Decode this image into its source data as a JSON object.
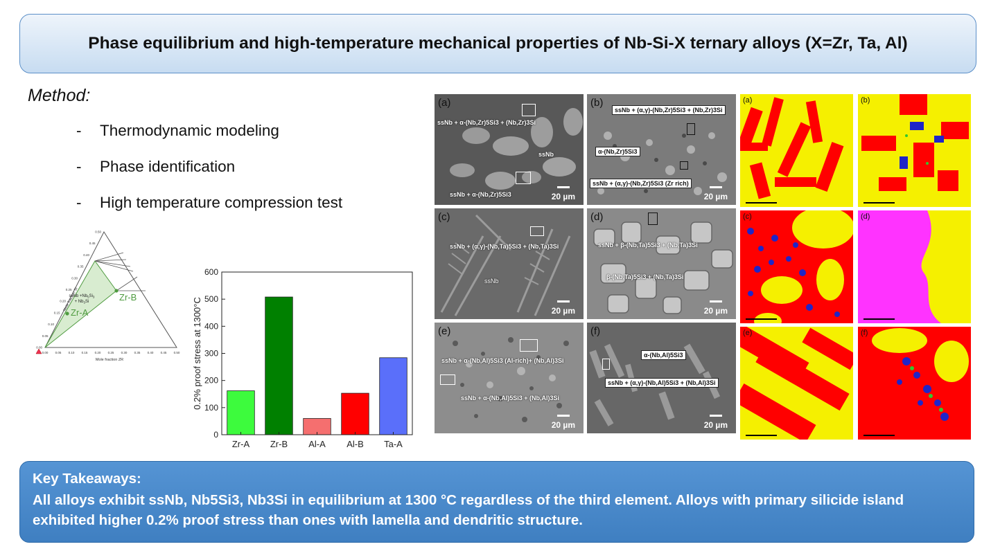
{
  "title": "Phase equilibrium and high-temperature mechanical properties of Nb-Si-X ternary alloys (X=Zr, Ta, Al)",
  "method": {
    "heading": "Method:",
    "items": [
      "Thermodynamic modeling",
      "Phase identification",
      "High temperature compression test"
    ]
  },
  "ternary": {
    "region_label": "ssNb +Nb5Si3 + Nb3Si",
    "point_a": "Zr-A",
    "point_b": "Zr-B",
    "xlabel": "Mole fraction ZR",
    "ylabel": "Mole fraction SI",
    "bottom_ticks": [
      "0.00",
      "0.05",
      "0.10",
      "0.15",
      "0.20",
      "0.25",
      "0.30",
      "0.35",
      "0.40",
      "0.45",
      "0.50"
    ],
    "left_ticks": [
      "0.00",
      "0.05",
      "0.10",
      "0.15",
      "0.20",
      "0.25",
      "0.30",
      "0.35",
      "0.40",
      "0.45",
      "0.50"
    ],
    "colors": {
      "region": "#d8ecd0",
      "point": "#4f9b40"
    }
  },
  "chart_data": {
    "type": "bar",
    "categories": [
      "Zr-A",
      "Zr-B",
      "Al-A",
      "Al-B",
      "Ta-A"
    ],
    "values": [
      162,
      508,
      60,
      153,
      284
    ],
    "colors": [
      "#3dfb3d",
      "#008000",
      "#f56f6f",
      "#ff0000",
      "#5a6ffa"
    ],
    "title": "",
    "xlabel": "",
    "ylabel": "0.2% proof stress at 1300°C",
    "ylim": [
      0,
      600
    ],
    "yticks": [
      0,
      100,
      200,
      300,
      400,
      500,
      600
    ],
    "grid": false
  },
  "sem_panels": [
    {
      "label": "(a)",
      "scale": "20 µm",
      "notes": [
        "ssNb + α-(Nb,Zr)5Si3 + (Nb,Zr)3Si",
        "ssNb",
        "ssNb + α-(Nb,Zr)5Si3"
      ]
    },
    {
      "label": "(b)",
      "scale": "20 µm",
      "notes": [
        "ssNb + (α,γ)-(Nb,Zr)5Si3 + (Nb,Zr)3Si",
        "α-(Nb,Zr)5Si3",
        "ssNb + (α,γ)-(Nb,Zr)5Si3 (Zr rich)"
      ]
    },
    {
      "label": "(c)",
      "scale": "20 µm",
      "notes": [
        "ssNb + (α,γ)-(Nb,Ta)5Si3 + (Nb,Ta)3Si",
        "ssNb"
      ]
    },
    {
      "label": "(d)",
      "scale": "20 µm",
      "notes": [
        "ssNb + β-(Nb,Ta)5Si3 + (Nb,Ta)3Si",
        "β-(Nb,Ta)5Si3 + (Nb,Ta)3Si"
      ]
    },
    {
      "label": "(e)",
      "scale": "20 µm",
      "notes": [
        "ssNb + α-(Nb,Al)5Si3 (Al-rich)+ (Nb,Al)3Si",
        "ssNb + α-(Nb,Al)5Si3 + (Nb,Al)3Si"
      ]
    },
    {
      "label": "(f)",
      "scale": "20 µm",
      "notes": [
        "α-(Nb,Al)5Si3",
        "ssNb + (α,γ)-(Nb,Al)5Si3 + (Nb,Al)3Si"
      ]
    }
  ],
  "ebsd_panels": [
    {
      "label": "(a)"
    },
    {
      "label": "(b)"
    },
    {
      "label": "(c)"
    },
    {
      "label": "(d)"
    },
    {
      "label": "(e)"
    },
    {
      "label": "(f)"
    }
  ],
  "ebsd_colors": {
    "ssNb": "#ff0000",
    "silicide": "#f5f000",
    "third": "#1f25c8",
    "magenta": "#ff33ff",
    "green": "#31c831"
  },
  "takeaways": {
    "heading": "Key Takeaways:",
    "body": "All alloys exhibit ssNb, Nb5Si3, Nb3Si in equilibrium at 1300 °C regardless of the third element. Alloys with primary silicide island exhibited higher 0.2% proof stress than ones with lamella and dendritic structure."
  }
}
